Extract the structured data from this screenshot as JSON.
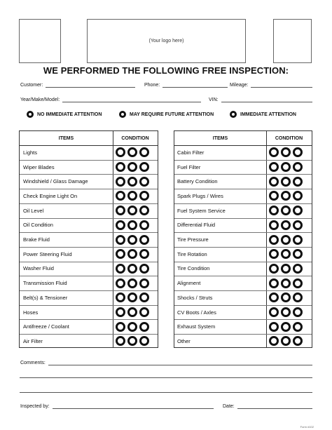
{
  "header": {
    "logo_placeholder": "(Your logo here)",
    "title": "WE PERFORMED THE FOLLOWING FREE INSPECTION:"
  },
  "fields": {
    "customer": "Customer:",
    "phone": "Phone:",
    "mileage": "Mileage:",
    "year_make_model": "Year/Make/Model:",
    "vin": "VIN:"
  },
  "legend": {
    "green": "NO IMMEDIATE ATTENTION",
    "yellow": "MAY REQUIRE FUTURE ATTENTION",
    "red": "IMMEDIATE ATTENTION"
  },
  "colors": {
    "green": "#1aa23a",
    "yellow": "#f0c419",
    "red": "#d9282a"
  },
  "table_headers": {
    "items": "ITEMS",
    "condition": "CONDITION"
  },
  "left_items": [
    "Lights",
    "Wiper Blades",
    "Windshield / Glass Damage",
    "Check Engine Light On",
    "Oil Level",
    "Oil Condition",
    "Brake Fluid",
    "Power Steering Fluid",
    "Washer Fluid",
    "Transmission Fluid",
    "Belt(s) & Tensioner",
    "Hoses",
    "Antifreeze / Coolant",
    "Air Filter"
  ],
  "right_items": [
    "Cabin Filter",
    "Fuel Filter",
    "Battery Condition",
    "Spark Plugs / Wires",
    "Fuel System Service",
    "Differential Fluid",
    "Tire Pressure",
    "Tire Rotation",
    "Tire Condition",
    "Alignment",
    "Shocks / Struts",
    "CV Boots / Axles",
    "Exhaust System",
    "Other"
  ],
  "footer": {
    "comments": "Comments:",
    "inspected_by": "Inspected by:",
    "date": "Date:",
    "form_number": "Form #102"
  }
}
